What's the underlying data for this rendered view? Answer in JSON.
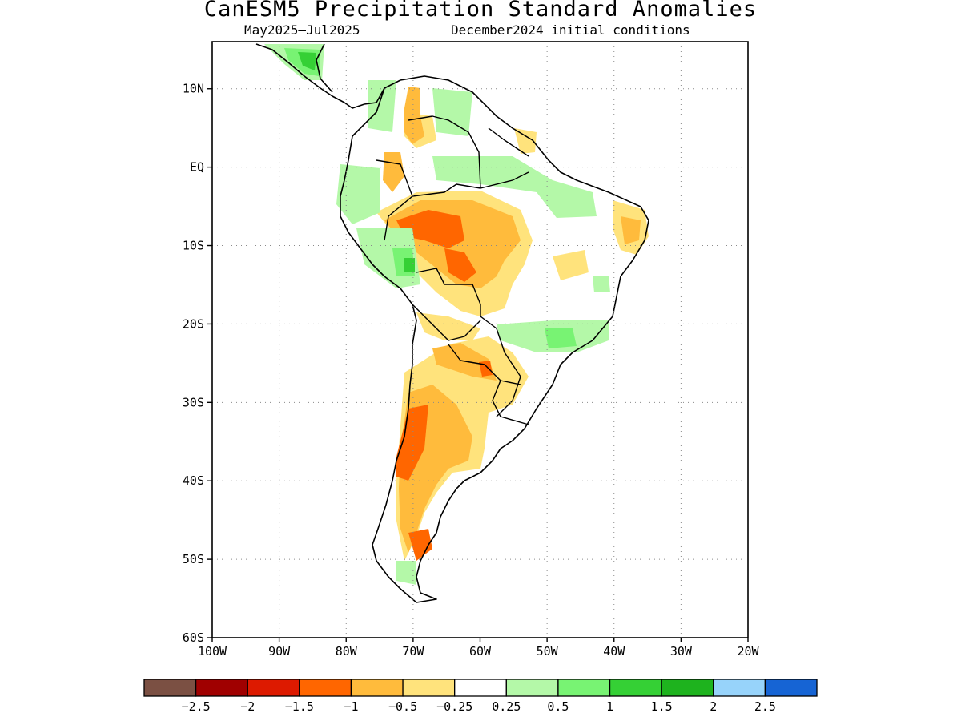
{
  "header": {
    "title": "CanESM5 Precipitation Standard Anomalies",
    "period": "May2025—Jul2025",
    "init": "December2024 initial conditions"
  },
  "axes": {
    "lon_labels": [
      "100W",
      "90W",
      "80W",
      "70W",
      "60W",
      "50W",
      "40W",
      "30W",
      "20W"
    ],
    "lat_labels": [
      "10N",
      "EQ",
      "10S",
      "20S",
      "30S",
      "40S",
      "50S",
      "60S"
    ],
    "lon_range": [
      -100,
      -20
    ],
    "lat_range": [
      -60,
      16
    ],
    "grid": "dotted"
  },
  "colorbar": {
    "colors": [
      "#7b5043",
      "#a00000",
      "#dd1a00",
      "#ff6600",
      "#ffbb3c",
      "#ffe37c",
      "#ffffff",
      "#b4f8a8",
      "#78f373",
      "#35d035",
      "#1eb31e",
      "#97d3fa",
      "#1664d4"
    ],
    "labels": [
      "−2.5",
      "−2",
      "−1.5",
      "−1",
      "−0.5",
      "−0.25",
      "0.25",
      "0.5",
      "1",
      "1.5",
      "2",
      "2.5"
    ]
  },
  "fills": {
    "neg1": "#ffbb3c",
    "neg15": "#ff6600",
    "neg05": "#ffe37c",
    "pos05": "#b4f8a8",
    "pos1": "#78f373",
    "pos15": "#35d035"
  }
}
